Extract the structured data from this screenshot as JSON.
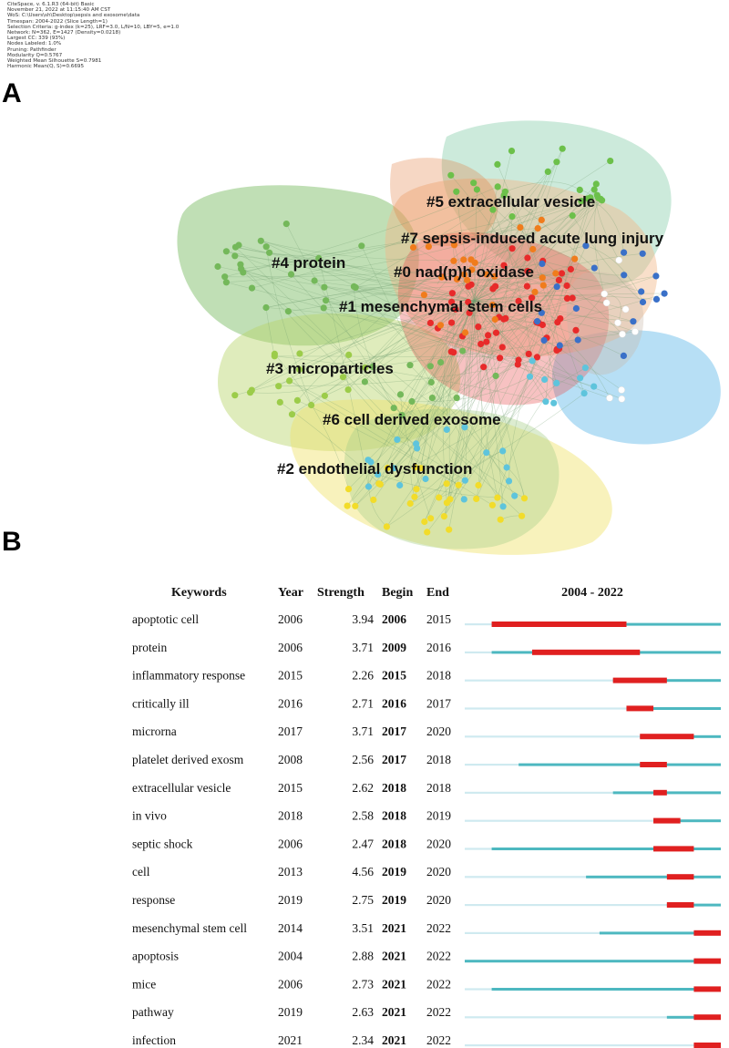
{
  "header_meta": [
    "CiteSpace, v. 6.1.R3 (64-bit) Basic",
    "November 21, 2022 at 11:15:40 AM CST",
    "WoS: C:\\Users\\sh\\Desktop\\sepsis and exosome\\data",
    "Timespan: 2004-2022 (Slice Length=1)",
    "Selection Criteria: g-index (k=25), LRF=3.0, L/N=10, LBY=5, e=1.0",
    "Network: N=362, E=1427 (Density=0.0218)",
    "Largest CC: 339 (93%)",
    "Nodes Labeled: 1.0%",
    "Pruning: Pathfinder",
    "Modularity Q=0.5767",
    "Weighted Mean Silhouette S=0.7981",
    "Harmonic Mean(Q, S)=0.6695"
  ],
  "panels": {
    "a": "A",
    "b": "B"
  },
  "clusters": [
    {
      "id": "#5",
      "label": "#5 extracellular vesicle",
      "color": "#8fd0b0"
    },
    {
      "id": "#7",
      "label": "#7 sepsis-induced acute lung injury",
      "color": "#f2b98a"
    },
    {
      "id": "#4",
      "label": "#4 protein",
      "color": "#74b85a"
    },
    {
      "id": "#0",
      "label": "#0 nad(p)h oxidase",
      "color": "#e85050"
    },
    {
      "id": "#1",
      "label": "#1 mesenchymal stem cells",
      "color": "#e07a3a"
    },
    {
      "id": "#3",
      "label": "#3 microparticles",
      "color": "#b8d46a"
    },
    {
      "id": "#6",
      "label": "#6 cell derived exosome",
      "color": "#5fb8e8"
    },
    {
      "id": "#2",
      "label": "#2 endothelial dysfunction",
      "color": "#f0e36a"
    }
  ],
  "chart_data": {
    "type": "table",
    "title": "2004 - 2022",
    "headers": {
      "keywords": "Keywords",
      "year": "Year",
      "strength": "Strength",
      "begin": "Begin",
      "end": "End"
    },
    "timespan": [
      2004,
      2022
    ],
    "colors": {
      "burst": "#e02020",
      "active": "#4db8c0",
      "inactive": "#cfeaf0"
    },
    "rows": [
      {
        "keyword": "apoptotic cell",
        "year": 2006,
        "strength": "3.94",
        "begin": 2006,
        "end": 2015
      },
      {
        "keyword": "protein",
        "year": 2006,
        "strength": "3.71",
        "begin": 2009,
        "end": 2016
      },
      {
        "keyword": "inflammatory response",
        "year": 2015,
        "strength": "2.26",
        "begin": 2015,
        "end": 2018
      },
      {
        "keyword": "critically ill",
        "year": 2016,
        "strength": "2.71",
        "begin": 2016,
        "end": 2017
      },
      {
        "keyword": "microrna",
        "year": 2017,
        "strength": "3.71",
        "begin": 2017,
        "end": 2020
      },
      {
        "keyword": "platelet derived exosm",
        "year": 2008,
        "strength": "2.56",
        "begin": 2017,
        "end": 2018
      },
      {
        "keyword": "extracellular vesicle",
        "year": 2015,
        "strength": "2.62",
        "begin": 2018,
        "end": 2018
      },
      {
        "keyword": "in vivo",
        "year": 2018,
        "strength": "2.58",
        "begin": 2018,
        "end": 2019
      },
      {
        "keyword": "septic shock",
        "year": 2006,
        "strength": "2.47",
        "begin": 2018,
        "end": 2020
      },
      {
        "keyword": "cell",
        "year": 2013,
        "strength": "4.56",
        "begin": 2019,
        "end": 2020
      },
      {
        "keyword": "response",
        "year": 2019,
        "strength": "2.75",
        "begin": 2019,
        "end": 2020
      },
      {
        "keyword": "mesenchymal stem cell",
        "year": 2014,
        "strength": "3.51",
        "begin": 2021,
        "end": 2022
      },
      {
        "keyword": "apoptosis",
        "year": 2004,
        "strength": "2.88",
        "begin": 2021,
        "end": 2022
      },
      {
        "keyword": "mice",
        "year": 2006,
        "strength": "2.73",
        "begin": 2021,
        "end": 2022
      },
      {
        "keyword": "pathway",
        "year": 2019,
        "strength": "2.63",
        "begin": 2021,
        "end": 2022
      },
      {
        "keyword": "infection",
        "year": 2021,
        "strength": "2.34",
        "begin": 2021,
        "end": 2022
      }
    ]
  }
}
